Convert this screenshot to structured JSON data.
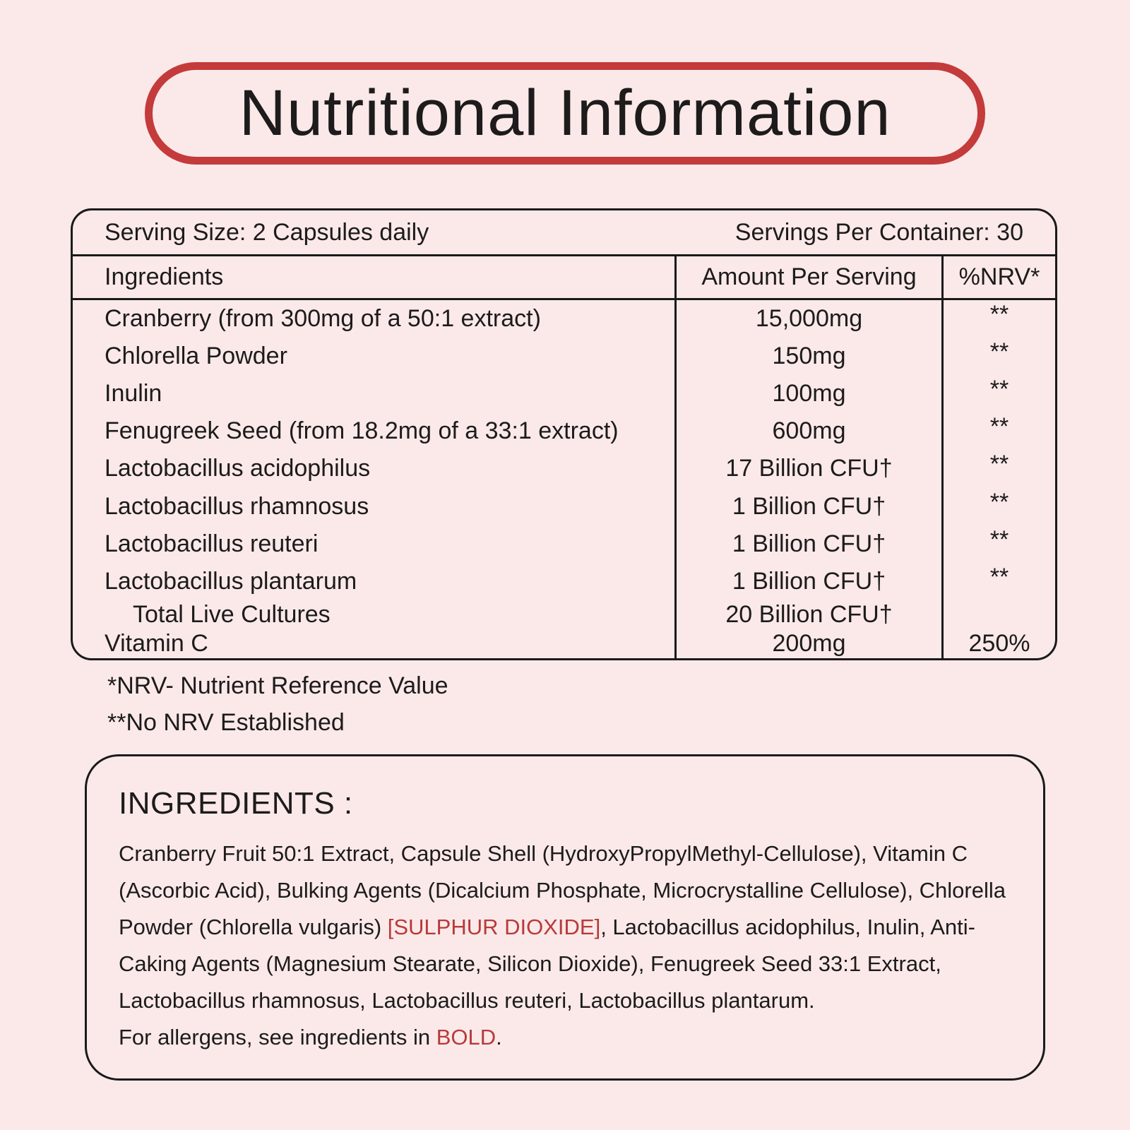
{
  "colors": {
    "background": "#fbe9e9",
    "title_border_red": "#c43b3b",
    "highlight_red": "#b83a3a",
    "line_black": "#1a1a1a",
    "text_black": "#1d1b1b"
  },
  "title": "Nutritional Information",
  "table": {
    "serving_size": "Serving Size: 2 Capsules daily",
    "servings_per_container": "Servings Per Container: 30",
    "headers": [
      "Ingredients",
      "Amount Per Serving",
      "%NRV*"
    ],
    "rows": [
      {
        "ingredient": "Cranberry (from 300mg of a 50:1 extract)",
        "amount": "15,000mg",
        "nrv": "**"
      },
      {
        "ingredient": "Chlorella Powder",
        "amount": "150mg",
        "nrv": "**"
      },
      {
        "ingredient": "Inulin",
        "amount": "100mg",
        "nrv": "**"
      },
      {
        "ingredient": "Fenugreek Seed (from 18.2mg of a 33:1 extract)",
        "amount": "600mg",
        "nrv": "**"
      },
      {
        "ingredient": "Lactobacillus acidophilus",
        "amount": "17 Billion CFU†",
        "nrv": "**"
      },
      {
        "ingredient": "Lactobacillus rhamnosus",
        "amount": "1 Billion CFU†",
        "nrv": "**"
      },
      {
        "ingredient": "Lactobacillus reuteri",
        "amount": "1 Billion CFU†",
        "nrv": "**"
      },
      {
        "ingredient": "Lactobacillus plantarum",
        "amount": "1 Billion CFU†",
        "nrv": "**"
      },
      {
        "ingredient": "Total Live Cultures",
        "amount": "20 Billion CFU†",
        "nrv": ""
      },
      {
        "ingredient": "Vitamin C",
        "amount": "200mg",
        "nrv": "250%"
      }
    ]
  },
  "footnotes": [
    "*NRV- Nutrient Reference Value",
    "**No NRV Established"
  ],
  "ingredients_panel": {
    "heading": "INGREDIENTS :",
    "text_before_allergen": "Cranberry Fruit 50:1 Extract, Capsule Shell (HydroxyPropylMethyl-Cellulose), Vitamin C (Ascorbic Acid), Bulking Agents (Dicalcium Phosphate, Microcrystalline Cellulose), Chlorella Powder (Chlorella vulgaris) ",
    "allergen_highlight": "[SULPHUR DIOXIDE]",
    "text_after_allergen": ", Lactobacillus acidophilus, Inulin, Anti-Caking Agents (Magnesium Stearate, Silicon Dioxide), Fenugreek Seed 33:1 Extract, Lactobacillus rhamnosus, Lactobacillus reuteri, Lactobacillus plantarum.",
    "note_prefix": "For allergens, see ingredients in ",
    "note_highlight": "BOLD",
    "note_suffix": "."
  }
}
